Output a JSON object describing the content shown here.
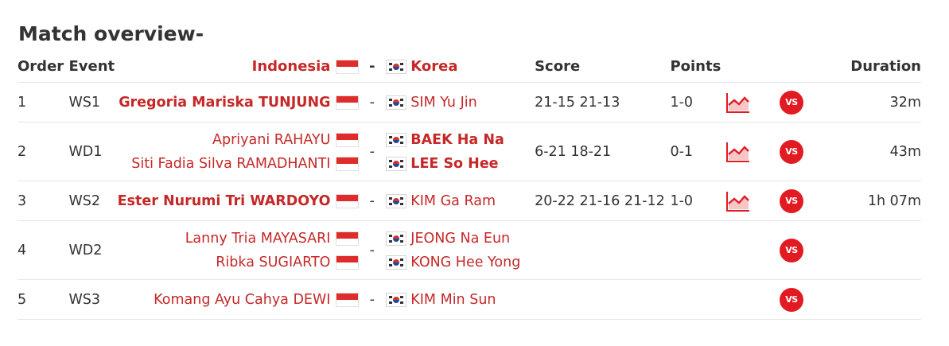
{
  "title": "Match overview-",
  "headers": {
    "order": "Order",
    "event": "Event",
    "home_team": "Indonesia",
    "dash": "-",
    "away_team": "Korea",
    "score": "Score",
    "points": "Points",
    "duration": "Duration"
  },
  "rows": [
    {
      "order": "1",
      "event": "WS1",
      "home": [
        "Gregoria Mariska TUNJUNG"
      ],
      "away": [
        "SIM Yu Jin"
      ],
      "dash": "-",
      "score": "21-15 21-13",
      "points": "1-0",
      "duration": "32m",
      "vs": "VS"
    },
    {
      "order": "2",
      "event": "WD1",
      "home": [
        "Apriyani RAHAYU",
        "Siti Fadia Silva RAMADHANTI"
      ],
      "away": [
        "BAEK Ha Na",
        "LEE So Hee"
      ],
      "dash": "-",
      "score": "6-21 18-21",
      "points": "0-1",
      "duration": "43m",
      "vs": "VS"
    },
    {
      "order": "3",
      "event": "WS2",
      "home": [
        "Ester Nurumi Tri WARDOYO"
      ],
      "away": [
        "KIM Ga Ram"
      ],
      "dash": "-",
      "score": "20-22 21-16 21-12",
      "points": "1-0",
      "duration": "1h 07m",
      "vs": "VS"
    },
    {
      "order": "4",
      "event": "WD2",
      "home": [
        "Lanny Tria MAYASARI",
        "Ribka SUGIARTO"
      ],
      "away": [
        "JEONG Na Eun",
        "KONG Hee Yong"
      ],
      "dash": "-",
      "score": "",
      "points": "",
      "duration": "",
      "vs": "VS"
    },
    {
      "order": "5",
      "event": "WS3",
      "home": [
        "Komang Ayu Cahya DEWI"
      ],
      "away": [
        "KIM Min Sun"
      ],
      "dash": "-",
      "score": "",
      "points": "",
      "duration": "",
      "vs": "VS"
    }
  ],
  "colors": {
    "accent": "#c62828",
    "vs_badge": "#e21b23",
    "text": "#333333",
    "divider": "#e6e6e6"
  },
  "icons": {
    "home_flag": "indonesia-flag-icon",
    "away_flag": "korea-flag-icon",
    "chart": "line-chart-icon",
    "vs": "vs-badge-icon"
  }
}
